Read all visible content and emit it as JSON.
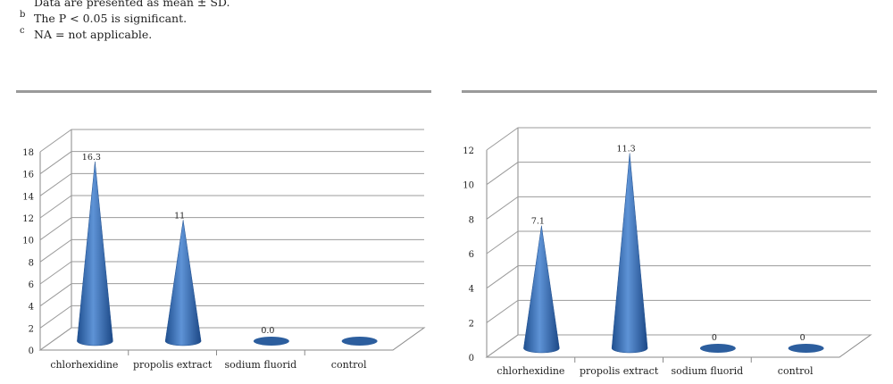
{
  "footnotes": [
    {
      "mark": "",
      "text": "Data are presented as mean ± SD."
    },
    {
      "mark": "b",
      "text": "The P < 0.05 is significant."
    },
    {
      "mark": "c",
      "text": "NA = not applicable."
    }
  ],
  "chart_data": [
    {
      "type": "bar",
      "shape": "cone-3d",
      "categories": [
        "chlorhexidine",
        "propolis extract",
        "sodium fluorid",
        "control"
      ],
      "values": [
        16.3,
        11,
        0.0,
        0
      ],
      "data_labels": [
        "16.3",
        "11",
        "0.0",
        ""
      ],
      "ylim": [
        0,
        18
      ],
      "yticks": [
        0,
        2,
        4,
        6,
        8,
        10,
        12,
        14,
        16,
        18
      ],
      "grid": true,
      "color": "#3b73b9"
    },
    {
      "type": "bar",
      "shape": "cone-3d",
      "categories": [
        "chlorhexidine",
        "propolis extract",
        "sodium fluorid",
        "control"
      ],
      "values": [
        7.1,
        11.3,
        0,
        0
      ],
      "data_labels": [
        "7.1",
        "11.3",
        "0",
        "0"
      ],
      "ylim": [
        0,
        12
      ],
      "yticks": [
        0,
        2,
        4,
        6,
        8,
        10,
        12
      ],
      "grid": true,
      "color": "#3b73b9"
    }
  ]
}
